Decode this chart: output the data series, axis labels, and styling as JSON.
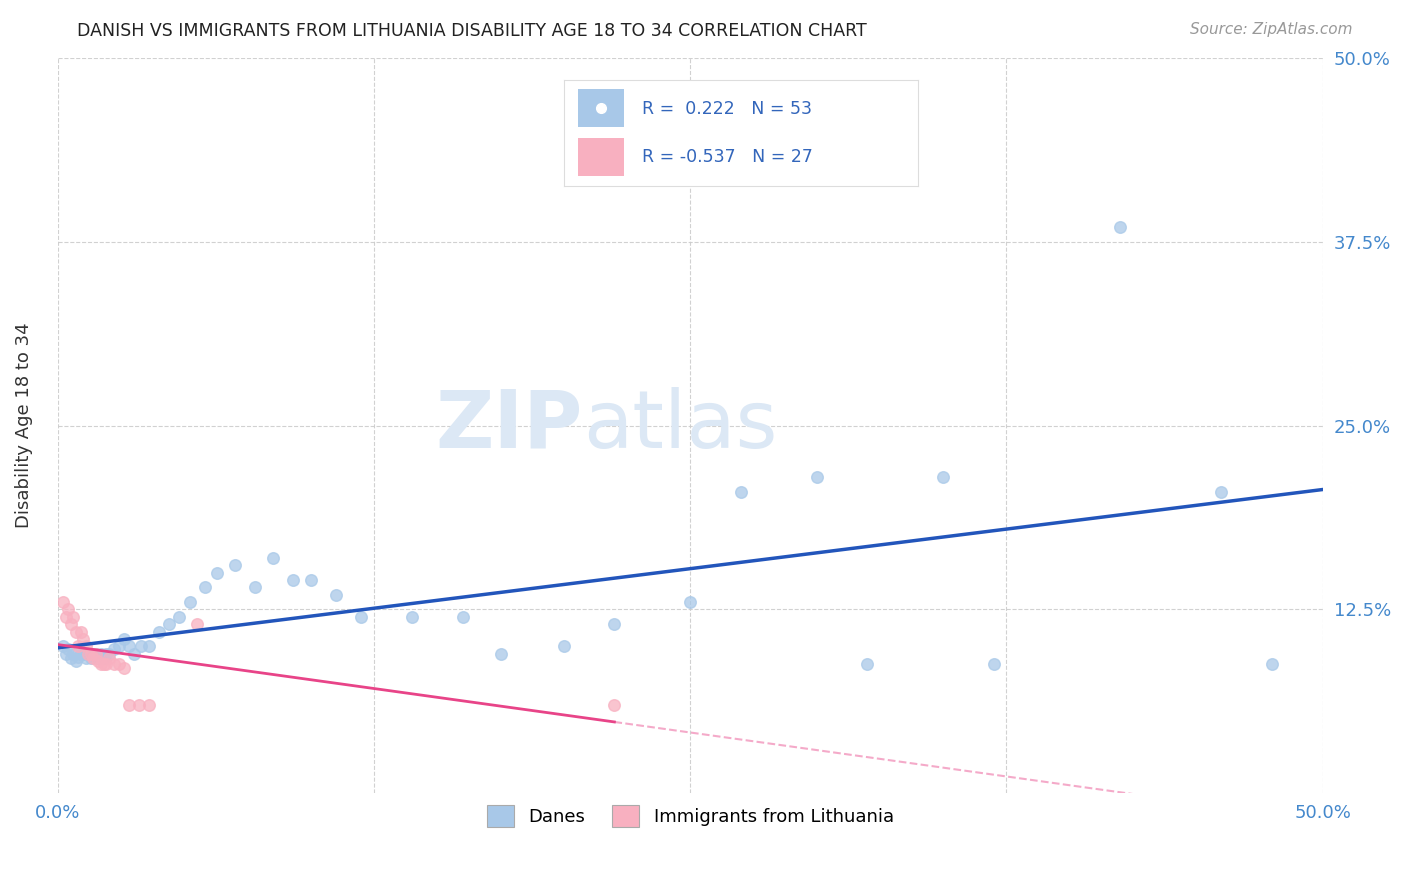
{
  "title": "DANISH VS IMMIGRANTS FROM LITHUANIA DISABILITY AGE 18 TO 34 CORRELATION CHART",
  "source": "Source: ZipAtlas.com",
  "ylabel": "Disability Age 18 to 34",
  "xlim": [
    0.0,
    0.5
  ],
  "ylim": [
    0.0,
    0.5
  ],
  "grid_color": "#cccccc",
  "background_color": "#ffffff",
  "danes_color": "#a8c8e8",
  "danes_edge_color": "#a8c8e8",
  "danes_line_color": "#2255bb",
  "immigrants_color": "#f8b0c0",
  "immigrants_edge_color": "#f8b0c0",
  "immigrants_line_color": "#e84488",
  "danes_R": 0.222,
  "danes_N": 53,
  "immigrants_R": -0.537,
  "immigrants_N": 27,
  "danes_x": [
    0.002,
    0.003,
    0.004,
    0.005,
    0.006,
    0.007,
    0.008,
    0.009,
    0.01,
    0.011,
    0.012,
    0.013,
    0.014,
    0.015,
    0.016,
    0.017,
    0.018,
    0.019,
    0.02,
    0.022,
    0.024,
    0.026,
    0.028,
    0.03,
    0.033,
    0.036,
    0.04,
    0.044,
    0.048,
    0.052,
    0.058,
    0.063,
    0.07,
    0.078,
    0.085,
    0.093,
    0.1,
    0.11,
    0.12,
    0.14,
    0.16,
    0.175,
    0.2,
    0.22,
    0.25,
    0.27,
    0.3,
    0.32,
    0.35,
    0.37,
    0.42,
    0.46,
    0.48
  ],
  "danes_y": [
    0.1,
    0.095,
    0.098,
    0.092,
    0.095,
    0.09,
    0.093,
    0.095,
    0.095,
    0.092,
    0.095,
    0.092,
    0.095,
    0.095,
    0.092,
    0.095,
    0.092,
    0.095,
    0.095,
    0.098,
    0.1,
    0.105,
    0.1,
    0.095,
    0.1,
    0.1,
    0.11,
    0.115,
    0.12,
    0.13,
    0.14,
    0.15,
    0.155,
    0.14,
    0.16,
    0.145,
    0.145,
    0.135,
    0.12,
    0.12,
    0.12,
    0.095,
    0.1,
    0.115,
    0.13,
    0.205,
    0.215,
    0.088,
    0.215,
    0.088,
    0.385,
    0.205,
    0.088
  ],
  "immigrants_x": [
    0.002,
    0.003,
    0.004,
    0.005,
    0.006,
    0.007,
    0.008,
    0.009,
    0.01,
    0.011,
    0.012,
    0.013,
    0.014,
    0.015,
    0.016,
    0.017,
    0.018,
    0.019,
    0.02,
    0.022,
    0.024,
    0.026,
    0.028,
    0.032,
    0.036,
    0.055,
    0.22
  ],
  "immigrants_y": [
    0.13,
    0.12,
    0.125,
    0.115,
    0.12,
    0.11,
    0.1,
    0.11,
    0.105,
    0.1,
    0.095,
    0.095,
    0.092,
    0.095,
    0.09,
    0.088,
    0.088,
    0.088,
    0.092,
    0.088,
    0.088,
    0.085,
    0.06,
    0.06,
    0.06,
    0.115,
    0.06
  ],
  "marker_size": 70,
  "marker_alpha": 0.75
}
